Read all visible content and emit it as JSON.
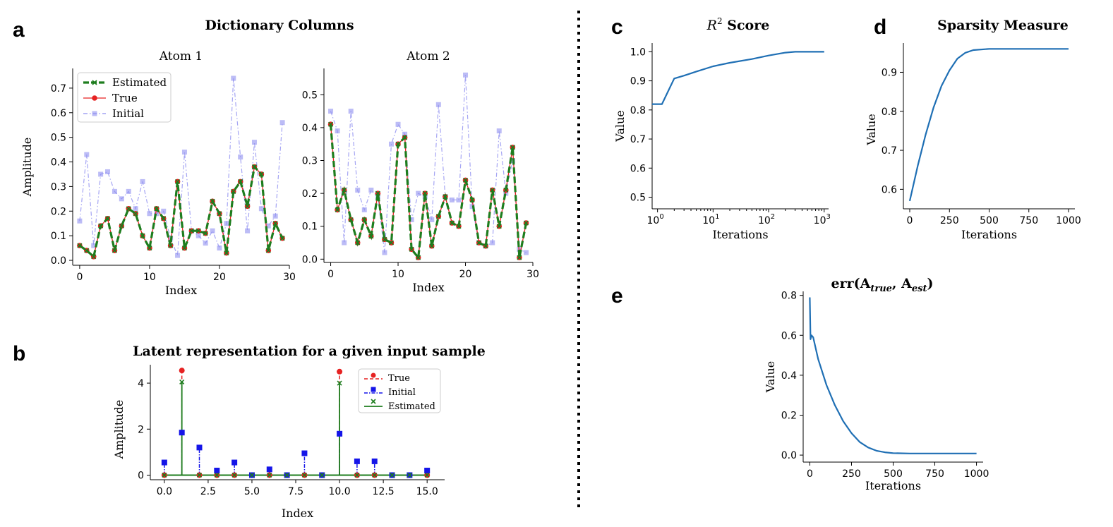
{
  "panel_labels": {
    "a": "a",
    "b": "b",
    "c": "c",
    "d": "d",
    "e": "e"
  },
  "colors": {
    "estimated": "#1e7d1e",
    "true": "#e62222",
    "initial": "#8f8ff0",
    "initial_b": "#1515e8",
    "curve": "#1f6fb4",
    "divider": "#000000"
  },
  "titles": {
    "dictionary": "Dictionary Columns",
    "latent": "Latent representation for a given input sample",
    "r2_sup": "2",
    "r2_rest": " Score",
    "sparsity": "Sparsity Measure",
    "err_a": "A",
    "err_true": "true",
    "err_est": "est"
  },
  "chart_data": [
    {
      "type": "line",
      "title": "Atom 1",
      "xlabel": "Index",
      "ylabel": "Amplitude",
      "xlim": [
        -1,
        30
      ],
      "ylim": [
        -0.02,
        0.78
      ],
      "xticks": [
        0,
        10,
        20,
        30
      ],
      "yticks": [
        0.0,
        0.1,
        0.2,
        0.3,
        0.4,
        0.5,
        0.6,
        0.7
      ],
      "x": [
        0,
        1,
        2,
        3,
        4,
        5,
        6,
        7,
        8,
        9,
        10,
        11,
        12,
        13,
        14,
        15,
        16,
        17,
        18,
        19,
        20,
        21,
        22,
        23,
        24,
        25,
        26,
        27,
        28,
        29
      ],
      "series": [
        {
          "name": "Initial",
          "values": [
            0.16,
            0.43,
            0.06,
            0.35,
            0.36,
            0.28,
            0.25,
            0.28,
            0.21,
            0.32,
            0.19,
            0.19,
            0.2,
            0.09,
            0.02,
            0.44,
            0.12,
            0.1,
            0.07,
            0.12,
            0.05,
            0.15,
            0.74,
            0.42,
            0.12,
            0.48,
            0.21,
            0.14,
            0.18,
            0.56
          ]
        },
        {
          "name": "True",
          "values": [
            0.06,
            0.04,
            0.015,
            0.14,
            0.17,
            0.04,
            0.14,
            0.21,
            0.19,
            0.1,
            0.05,
            0.21,
            0.17,
            0.06,
            0.32,
            0.05,
            0.12,
            0.12,
            0.11,
            0.24,
            0.19,
            0.03,
            0.28,
            0.32,
            0.22,
            0.38,
            0.35,
            0.04,
            0.15,
            0.09
          ]
        },
        {
          "name": "Estimated",
          "values": [
            0.06,
            0.04,
            0.015,
            0.14,
            0.17,
            0.04,
            0.14,
            0.21,
            0.19,
            0.1,
            0.05,
            0.21,
            0.17,
            0.06,
            0.32,
            0.05,
            0.12,
            0.12,
            0.11,
            0.24,
            0.19,
            0.03,
            0.28,
            0.32,
            0.22,
            0.38,
            0.35,
            0.04,
            0.15,
            0.09
          ]
        }
      ],
      "legend": [
        "Estimated",
        "True",
        "Initial"
      ]
    },
    {
      "type": "line",
      "title": "Atom 2",
      "xlabel": "Index",
      "ylabel": "",
      "xlim": [
        -1,
        30
      ],
      "ylim": [
        -0.01,
        0.58
      ],
      "xticks": [
        0,
        10,
        20,
        30
      ],
      "yticks": [
        0.0,
        0.1,
        0.2,
        0.3,
        0.4,
        0.5
      ],
      "x": [
        0,
        1,
        2,
        3,
        4,
        5,
        6,
        7,
        8,
        9,
        10,
        11,
        12,
        13,
        14,
        15,
        16,
        17,
        18,
        19,
        20,
        21,
        22,
        23,
        24,
        25,
        26,
        27,
        28,
        29
      ],
      "series": [
        {
          "name": "Initial",
          "values": [
            0.45,
            0.39,
            0.05,
            0.45,
            0.21,
            0.15,
            0.21,
            0.19,
            0.02,
            0.35,
            0.41,
            0.38,
            0.12,
            0.2,
            0.19,
            0.12,
            0.47,
            0.19,
            0.18,
            0.18,
            0.56,
            0.16,
            0.05,
            0.04,
            0.05,
            0.39,
            0.2,
            0.3,
            0.03,
            0.02
          ]
        },
        {
          "name": "True",
          "values": [
            0.41,
            0.15,
            0.21,
            0.12,
            0.05,
            0.12,
            0.07,
            0.2,
            0.06,
            0.05,
            0.35,
            0.37,
            0.03,
            0.005,
            0.2,
            0.04,
            0.13,
            0.19,
            0.11,
            0.1,
            0.24,
            0.18,
            0.05,
            0.04,
            0.21,
            0.1,
            0.21,
            0.34,
            0.005,
            0.11
          ]
        },
        {
          "name": "Estimated",
          "values": [
            0.41,
            0.15,
            0.21,
            0.12,
            0.05,
            0.12,
            0.07,
            0.2,
            0.06,
            0.05,
            0.35,
            0.37,
            0.03,
            0.005,
            0.2,
            0.04,
            0.13,
            0.19,
            0.11,
            0.1,
            0.24,
            0.18,
            0.05,
            0.04,
            0.21,
            0.1,
            0.21,
            0.34,
            0.005,
            0.11
          ]
        }
      ]
    },
    {
      "type": "stem",
      "title": "Latent representation for a given input sample",
      "xlabel": "Index",
      "ylabel": "Amplitude",
      "xlim": [
        -0.8,
        16
      ],
      "ylim": [
        -0.2,
        4.8
      ],
      "xticks": [
        0.0,
        2.5,
        5.0,
        7.5,
        10.0,
        12.5,
        15.0
      ],
      "yticks": [
        0,
        2,
        4
      ],
      "x": [
        0,
        1,
        2,
        3,
        4,
        5,
        6,
        7,
        8,
        9,
        10,
        11,
        12,
        13,
        14,
        15
      ],
      "series": [
        {
          "name": "True",
          "values": [
            0,
            4.55,
            0,
            0,
            0,
            0,
            0,
            0,
            0,
            0,
            4.5,
            0,
            0,
            0,
            0,
            0
          ]
        },
        {
          "name": "Initial",
          "values": [
            0.55,
            1.85,
            1.2,
            0.2,
            0.55,
            0,
            0.25,
            0,
            0.95,
            0,
            1.8,
            0.6,
            0.6,
            0,
            0,
            0.2
          ]
        },
        {
          "name": "Estimated",
          "values": [
            0,
            4.05,
            0,
            0,
            0,
            0,
            0,
            0,
            0,
            0,
            4.0,
            0,
            0,
            0,
            0,
            0
          ]
        }
      ],
      "legend": [
        "True",
        "Initial",
        "Estimated"
      ]
    },
    {
      "type": "line",
      "title": "R^2 Score",
      "xscale": "log",
      "xlabel": "Iterations",
      "ylabel": "Value",
      "xlim": [
        0.8,
        1200
      ],
      "ylim": [
        0.46,
        1.03
      ],
      "xticks": [
        1,
        10,
        100,
        1000
      ],
      "yticks": [
        0.5,
        0.6,
        0.7,
        0.8,
        0.9,
        1.0
      ],
      "x": [
        0.8,
        1,
        1.2,
        2,
        3,
        5,
        10,
        20,
        50,
        100,
        200,
        300,
        500,
        1000
      ],
      "y": [
        0.82,
        0.82,
        0.82,
        0.908,
        0.918,
        0.932,
        0.95,
        0.962,
        0.975,
        0.987,
        0.997,
        1.0,
        1.0,
        1.0
      ]
    },
    {
      "type": "line",
      "title": "Sparsity Measure",
      "xlabel": "Iterations",
      "ylabel": "Value",
      "xlim": [
        -40,
        1040
      ],
      "ylim": [
        0.55,
        0.975
      ],
      "xticks": [
        0,
        250,
        500,
        750,
        1000
      ],
      "yticks": [
        0.6,
        0.7,
        0.8,
        0.9
      ],
      "x": [
        0,
        50,
        100,
        150,
        200,
        250,
        300,
        350,
        400,
        500,
        600,
        800,
        1000
      ],
      "y": [
        0.57,
        0.66,
        0.74,
        0.81,
        0.865,
        0.905,
        0.935,
        0.95,
        0.957,
        0.96,
        0.96,
        0.96,
        0.96
      ]
    },
    {
      "type": "line",
      "title": "err(A_true, A_est)",
      "xlabel": "Iterations",
      "ylabel": "Value",
      "xlim": [
        -40,
        1040
      ],
      "ylim": [
        -0.035,
        0.82
      ],
      "xticks": [
        0,
        250,
        500,
        750,
        1000
      ],
      "yticks": [
        0.0,
        0.2,
        0.4,
        0.6,
        0.8
      ],
      "x": [
        0,
        4,
        10,
        20,
        50,
        100,
        150,
        200,
        250,
        300,
        350,
        400,
        450,
        500,
        600,
        700,
        800,
        1000
      ],
      "y": [
        0.79,
        0.58,
        0.6,
        0.59,
        0.48,
        0.35,
        0.25,
        0.17,
        0.11,
        0.065,
        0.038,
        0.022,
        0.014,
        0.01,
        0.008,
        0.008,
        0.008,
        0.008
      ]
    }
  ]
}
